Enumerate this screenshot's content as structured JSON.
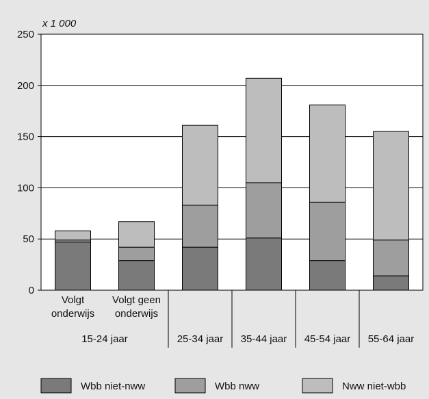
{
  "chart_data": {
    "type": "bar",
    "stacked": true,
    "unit_label": "x 1 000",
    "ylim": [
      0,
      250
    ],
    "yticks": [
      0,
      50,
      100,
      150,
      200,
      250
    ],
    "grid": true,
    "legend_position": "bottom",
    "categories": [
      [
        "Volgt",
        "onderwijs"
      ],
      [
        "Volgt geen",
        "onderwijs"
      ],
      [
        "25-34 jaar"
      ],
      [
        "35-44 jaar"
      ],
      [
        "45-54 jaar"
      ],
      [
        "55-64 jaar"
      ]
    ],
    "group_labels": [
      {
        "label": "15-24 jaar",
        "spans": [
          0,
          1
        ]
      }
    ],
    "series": [
      {
        "name": "Wbb niet-nww",
        "color": "#7a7a7a",
        "values": [
          47,
          29,
          42,
          51,
          29,
          14
        ]
      },
      {
        "name": "Wbb nww",
        "color": "#9e9e9e",
        "values": [
          2,
          13,
          41,
          54,
          57,
          35
        ]
      },
      {
        "name": "Nww niet-wbb",
        "color": "#bdbdbd",
        "values": [
          9,
          25,
          78,
          102,
          95,
          106
        ]
      }
    ]
  }
}
